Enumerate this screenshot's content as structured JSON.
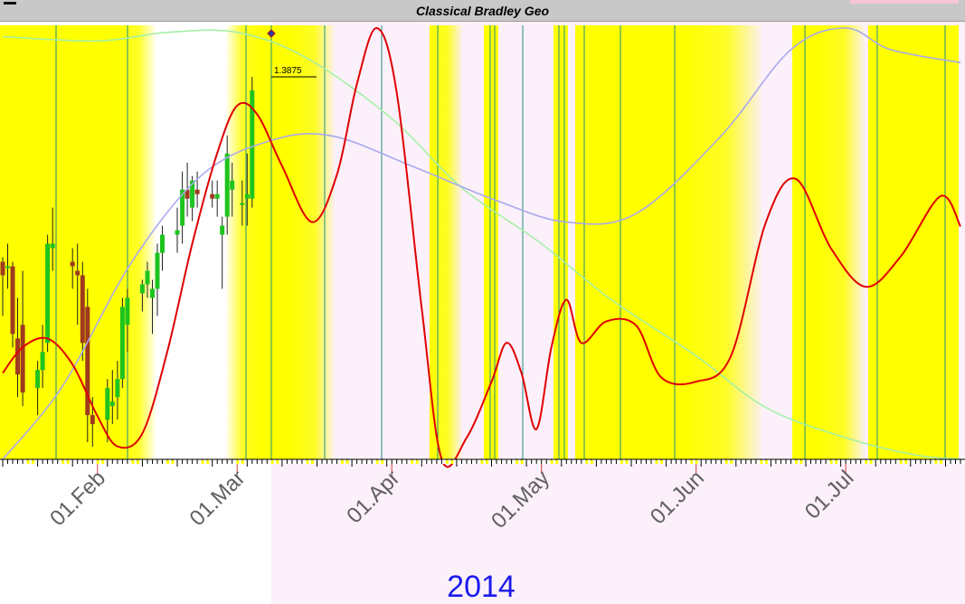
{
  "title": "Classical Bradley Geo",
  "chart_data": {
    "type": "line",
    "title": "Classical Bradley Geo",
    "year_label": "2014",
    "x_range": [
      "2014-01-13",
      "2014-07-24"
    ],
    "x_tick_labels": [
      {
        "date": "2014-02-01",
        "label": "01.Feb"
      },
      {
        "date": "2014-03-01",
        "label": "01.Mar"
      },
      {
        "date": "2014-04-01",
        "label": "01.Apr"
      },
      {
        "date": "2014-05-01",
        "label": "01.May"
      },
      {
        "date": "2014-06-01",
        "label": "01.Jun"
      },
      {
        "date": "2014-07-01",
        "label": "01.Jul"
      }
    ],
    "last_price": {
      "date": "2014-03-04",
      "label": "1.3875"
    },
    "colors": {
      "bradley": "#e00000",
      "green_cycle": "#a6f0a6",
      "blue_cycle": "#a9a9ee",
      "turn_lines": "#1f8f7f",
      "candle_up": "#1ec41e",
      "candle_down": "#a03a1e",
      "highlight": "#ffff00",
      "future_bg": "#fcf0fa"
    },
    "series": [
      {
        "key": "bradley",
        "points": [
          [
            "2014-01-13",
            20
          ],
          [
            "2014-01-17",
            26
          ],
          [
            "2014-01-22",
            28
          ],
          [
            "2014-01-27",
            22
          ],
          [
            "2014-02-01",
            10
          ],
          [
            "2014-02-05",
            3
          ],
          [
            "2014-02-10",
            6
          ],
          [
            "2014-02-15",
            25
          ],
          [
            "2014-02-20",
            50
          ],
          [
            "2014-02-25",
            71
          ],
          [
            "2014-03-01",
            82
          ],
          [
            "2014-03-05",
            80
          ],
          [
            "2014-03-10",
            68
          ],
          [
            "2014-03-16",
            55
          ],
          [
            "2014-03-21",
            66
          ],
          [
            "2014-03-25",
            87
          ],
          [
            "2014-03-29",
            100
          ],
          [
            "2014-04-02",
            85
          ],
          [
            "2014-04-07",
            35
          ],
          [
            "2014-04-11",
            0
          ],
          [
            "2014-04-16",
            5
          ],
          [
            "2014-04-21",
            18
          ],
          [
            "2014-04-24",
            27
          ],
          [
            "2014-04-27",
            20
          ],
          [
            "2014-04-30",
            7
          ],
          [
            "2014-05-03",
            26
          ],
          [
            "2014-05-06",
            37
          ],
          [
            "2014-05-09",
            27
          ],
          [
            "2014-05-14",
            32
          ],
          [
            "2014-05-20",
            31
          ],
          [
            "2014-05-25",
            19
          ],
          [
            "2014-06-01",
            18
          ],
          [
            "2014-06-08",
            24
          ],
          [
            "2014-06-15",
            55
          ],
          [
            "2014-06-21",
            65
          ],
          [
            "2014-06-28",
            49
          ],
          [
            "2014-07-05",
            40
          ],
          [
            "2014-07-12",
            47
          ],
          [
            "2014-07-20",
            61
          ],
          [
            "2014-07-24",
            54
          ]
        ]
      },
      {
        "key": "green_cycle",
        "points": [
          [
            "2014-01-13",
            98
          ],
          [
            "2014-02-01",
            97
          ],
          [
            "2014-02-15",
            99
          ],
          [
            "2014-03-01",
            99
          ],
          [
            "2014-03-15",
            93
          ],
          [
            "2014-04-01",
            79
          ],
          [
            "2014-04-15",
            63
          ],
          [
            "2014-05-01",
            50
          ],
          [
            "2014-05-15",
            37
          ],
          [
            "2014-06-01",
            24
          ],
          [
            "2014-06-15",
            12
          ],
          [
            "2014-07-01",
            5
          ],
          [
            "2014-07-15",
            1
          ],
          [
            "2014-07-24",
            0
          ]
        ]
      },
      {
        "key": "blue_cycle",
        "points": [
          [
            "2014-01-13",
            0
          ],
          [
            "2014-01-25",
            17
          ],
          [
            "2014-02-08",
            46
          ],
          [
            "2014-02-22",
            66
          ],
          [
            "2014-03-08",
            74
          ],
          [
            "2014-03-20",
            75
          ],
          [
            "2014-04-05",
            68
          ],
          [
            "2014-04-22",
            60
          ],
          [
            "2014-05-06",
            55
          ],
          [
            "2014-05-20",
            57
          ],
          [
            "2014-06-06",
            75
          ],
          [
            "2014-06-20",
            95
          ],
          [
            "2014-07-01",
            100
          ],
          [
            "2014-07-10",
            95
          ],
          [
            "2014-07-24",
            92
          ]
        ]
      }
    ],
    "candles": [
      [
        "2014-01-13",
        1.367,
        1.3675,
        1.361,
        1.3655
      ],
      [
        "2014-01-14",
        1.3665,
        1.369,
        1.364,
        1.3665
      ],
      [
        "2014-01-15",
        1.3665,
        1.367,
        1.3575,
        1.359
      ],
      [
        "2014-01-16",
        1.3585,
        1.363,
        1.352,
        1.3545
      ],
      [
        "2014-01-17",
        1.36,
        1.366,
        1.351,
        1.3525
      ],
      [
        "2014-01-20",
        1.353,
        1.356,
        1.35,
        1.355
      ],
      [
        "2014-01-21",
        1.355,
        1.36,
        1.353,
        1.357
      ],
      [
        "2014-01-22",
        1.358,
        1.37,
        1.357,
        1.369
      ],
      [
        "2014-01-23",
        1.3685,
        1.373,
        1.366,
        1.369
      ],
      [
        "2014-01-27",
        1.367,
        1.3685,
        1.364,
        1.3665
      ],
      [
        "2014-01-28",
        1.366,
        1.369,
        1.36,
        1.3655
      ],
      [
        "2014-01-29",
        1.3655,
        1.367,
        1.356,
        1.358
      ],
      [
        "2014-01-30",
        1.362,
        1.364,
        1.347,
        1.35
      ],
      [
        "2014-01-31",
        1.35,
        1.352,
        1.3465,
        1.349
      ],
      [
        "2014-02-03",
        1.3495,
        1.354,
        1.347,
        1.353
      ],
      [
        "2014-02-04",
        1.351,
        1.355,
        1.349,
        1.3515
      ],
      [
        "2014-02-05",
        1.352,
        1.356,
        1.3495,
        1.354
      ],
      [
        "2014-02-06",
        1.354,
        1.363,
        1.353,
        1.362
      ],
      [
        "2014-02-07",
        1.36,
        1.364,
        1.357,
        1.363
      ],
      [
        "2014-02-10",
        1.3635,
        1.365,
        1.3615,
        1.3645
      ],
      [
        "2014-02-11",
        1.3645,
        1.367,
        1.363,
        1.366
      ],
      [
        "2014-02-12",
        1.363,
        1.365,
        1.359,
        1.364
      ],
      [
        "2014-02-13",
        1.364,
        1.369,
        1.361,
        1.368
      ],
      [
        "2014-02-14",
        1.368,
        1.371,
        1.366,
        1.37
      ],
      [
        "2014-02-17",
        1.37,
        1.373,
        1.368,
        1.3705
      ],
      [
        "2014-02-18",
        1.371,
        1.377,
        1.369,
        1.375
      ],
      [
        "2014-02-19",
        1.375,
        1.378,
        1.372,
        1.374
      ],
      [
        "2014-02-20",
        1.373,
        1.3765,
        1.3715,
        1.376
      ],
      [
        "2014-02-21",
        1.375,
        1.377,
        1.373,
        1.3745
      ],
      [
        "2014-02-24",
        1.3745,
        1.376,
        1.373,
        1.374
      ],
      [
        "2014-02-25",
        1.374,
        1.376,
        1.372,
        1.3745
      ],
      [
        "2014-02-26",
        1.37,
        1.372,
        1.364,
        1.371
      ],
      [
        "2014-02-27",
        1.372,
        1.381,
        1.37,
        1.379
      ],
      [
        "2014-02-28",
        1.375,
        1.378,
        1.372,
        1.376
      ],
      [
        "2014-03-02",
        1.3735,
        1.376,
        1.371,
        1.3735
      ],
      [
        "2014-03-03",
        1.374,
        1.379,
        1.371,
        1.3745
      ],
      [
        "2014-03-04",
        1.374,
        1.3875,
        1.373,
        1.386
      ]
    ]
  }
}
